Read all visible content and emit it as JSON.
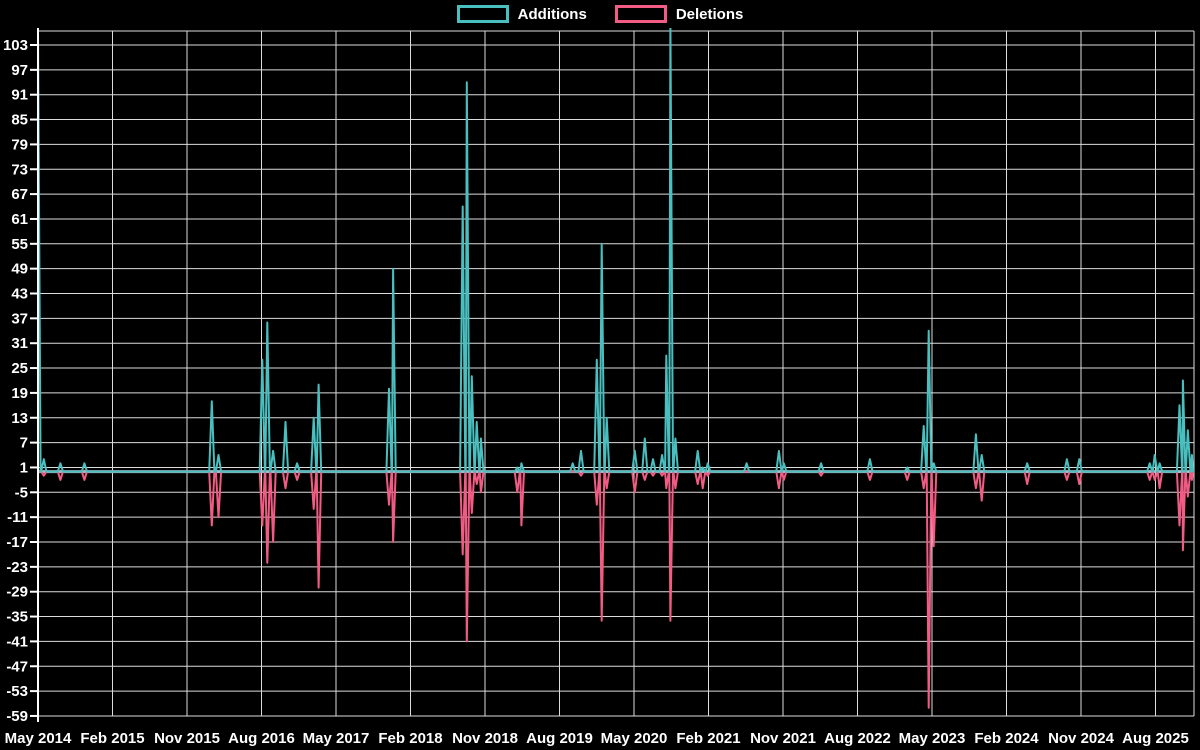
{
  "legend": {
    "additions_label": "Additions",
    "deletions_label": "Deletions"
  },
  "colors": {
    "background": "#000000",
    "additions": "#49bfbf",
    "deletions": "#f25c84",
    "grid": "#dcdcdc",
    "axis": "#ffffff",
    "zero_line": "#a4bcc6",
    "text": "#ffffff"
  },
  "chart_data": {
    "type": "line",
    "title": "",
    "legend_position": "top",
    "grid": true,
    "series_names": [
      "Additions",
      "Deletions"
    ],
    "x_start": "May 2014",
    "x_end": "Dec 2025",
    "months_per_x_tick": 9,
    "x_tick_labels": [
      "May 2014",
      "Feb 2015",
      "Nov 2015",
      "Aug 2016",
      "May 2017",
      "Feb 2018",
      "Nov 2018",
      "Aug 2019",
      "May 2020",
      "Feb 2021",
      "Nov 2021",
      "Aug 2022",
      "May 2023",
      "Feb 2024",
      "Nov 2024",
      "Aug 2025"
    ],
    "y_min": -59,
    "y_max": 103,
    "y_tick_step": 6,
    "y_ticks": [
      103,
      97,
      91,
      85,
      79,
      73,
      67,
      61,
      55,
      49,
      43,
      37,
      31,
      25,
      19,
      13,
      7,
      1,
      -5,
      -11,
      -17,
      -23,
      -29,
      -35,
      -41,
      -47,
      -53,
      -59
    ],
    "baseline": 0,
    "clipped_note": "Additions spikes at May 2014 and Oct 2020 exceed the top of the plot (>103) and are clipped.",
    "points": [
      {
        "m": 0,
        "month": "May 2014",
        "additions": 106,
        "deletions": 0
      },
      {
        "m": 0.7,
        "month": "Jun 2014",
        "additions": 3,
        "deletions": -1
      },
      {
        "m": 2.7,
        "month": "Aug 2014",
        "additions": 2,
        "deletions": -2
      },
      {
        "m": 5.6,
        "month": "Nov 2014",
        "additions": 2,
        "deletions": -2
      },
      {
        "m": 21.0,
        "month": "Feb 2016",
        "additions": 17,
        "deletions": -13
      },
      {
        "m": 21.8,
        "month": "Mar 2016",
        "additions": 4,
        "deletions": -11
      },
      {
        "m": 27.1,
        "month": "Aug 2016",
        "additions": 27,
        "deletions": -13
      },
      {
        "m": 27.7,
        "month": "Sep 2016",
        "additions": 36,
        "deletions": -22
      },
      {
        "m": 28.4,
        "month": "Oct 2016",
        "additions": 5,
        "deletions": -17
      },
      {
        "m": 29.9,
        "month": "Nov 2016",
        "additions": 12,
        "deletions": -4
      },
      {
        "m": 31.3,
        "month": "Dec 2016",
        "additions": 2,
        "deletions": -2
      },
      {
        "m": 33.3,
        "month": "Feb 2017",
        "additions": 13,
        "deletions": -9
      },
      {
        "m": 33.9,
        "month": "Mar 2017",
        "additions": 21,
        "deletions": -28
      },
      {
        "m": 42.4,
        "month": "Nov 2017",
        "additions": 20,
        "deletions": -8
      },
      {
        "m": 42.9,
        "month": "Dec 2017",
        "additions": 49,
        "deletions": -17
      },
      {
        "m": 51.3,
        "month": "Aug 2018",
        "additions": 64,
        "deletions": -20
      },
      {
        "m": 51.8,
        "month": "Sep 2018",
        "additions": 94,
        "deletions": -41
      },
      {
        "m": 52.4,
        "month": "Oct 2018",
        "additions": 23,
        "deletions": -10
      },
      {
        "m": 53.0,
        "month": "Nov 2018",
        "additions": 12,
        "deletions": -3
      },
      {
        "m": 53.5,
        "month": "Dec 2018",
        "additions": 8,
        "deletions": -5
      },
      {
        "m": 57.9,
        "month": "Mar 2019",
        "additions": 1,
        "deletions": -5
      },
      {
        "m": 58.4,
        "month": "Apr 2019",
        "additions": 2,
        "deletions": -13
      },
      {
        "m": 64.6,
        "month": "Oct 2019",
        "additions": 2,
        "deletions": 0
      },
      {
        "m": 65.6,
        "month": "Nov 2019",
        "additions": 5,
        "deletions": -1
      },
      {
        "m": 67.5,
        "month": "Jan 2020",
        "additions": 27,
        "deletions": -8
      },
      {
        "m": 68.1,
        "month": "Feb 2020",
        "additions": 55,
        "deletions": -36
      },
      {
        "m": 68.7,
        "month": "Mar 2020",
        "additions": 13,
        "deletions": -4
      },
      {
        "m": 72.1,
        "month": "Jun 2020",
        "additions": 5,
        "deletions": -5
      },
      {
        "m": 73.3,
        "month": "Jul 2020",
        "additions": 8,
        "deletions": -2
      },
      {
        "m": 74.3,
        "month": "Aug 2020",
        "additions": 3,
        "deletions": -1
      },
      {
        "m": 75.4,
        "month": "Sep 2020",
        "additions": 4,
        "deletions": -1
      },
      {
        "m": 75.9,
        "month": "Oct 2020",
        "additions": 28,
        "deletions": -4
      },
      {
        "m": 76.4,
        "month": "Oct 2020",
        "additions": 108,
        "deletions": -36
      },
      {
        "m": 77.0,
        "month": "Nov 2020",
        "additions": 8,
        "deletions": -4
      },
      {
        "m": 79.7,
        "month": "Jan 2021",
        "additions": 5,
        "deletions": -3
      },
      {
        "m": 80.3,
        "month": "Feb 2021",
        "additions": 1,
        "deletions": -4
      },
      {
        "m": 80.9,
        "month": "Mar 2021",
        "additions": 2,
        "deletions": -1
      },
      {
        "m": 85.6,
        "month": "Jul 2021",
        "additions": 2,
        "deletions": 0
      },
      {
        "m": 89.5,
        "month": "Nov 2021",
        "additions": 5,
        "deletions": -4
      },
      {
        "m": 90.1,
        "month": "Dec 2021",
        "additions": 2,
        "deletions": -2
      },
      {
        "m": 94.6,
        "month": "Apr 2022",
        "additions": 2,
        "deletions": -1
      },
      {
        "m": 100.5,
        "month": "Oct 2022",
        "additions": 3,
        "deletions": -2
      },
      {
        "m": 105.0,
        "month": "Feb 2023",
        "additions": 1,
        "deletions": -2
      },
      {
        "m": 107.0,
        "month": "Apr 2023",
        "additions": 11,
        "deletions": -4
      },
      {
        "m": 107.6,
        "month": "May 2023",
        "additions": 34,
        "deletions": -57
      },
      {
        "m": 108.2,
        "month": "Jun 2023",
        "additions": 2,
        "deletions": -18
      },
      {
        "m": 113.3,
        "month": "Nov 2023",
        "additions": 9,
        "deletions": -4
      },
      {
        "m": 114.0,
        "month": "Dec 2023",
        "additions": 4,
        "deletions": -7
      },
      {
        "m": 119.5,
        "month": "May 2024",
        "additions": 2,
        "deletions": -3
      },
      {
        "m": 124.3,
        "month": "Oct 2024",
        "additions": 3,
        "deletions": -2
      },
      {
        "m": 125.8,
        "month": "Nov 2024",
        "additions": 3,
        "deletions": -3
      },
      {
        "m": 134.3,
        "month": "Jul 2025",
        "additions": 2,
        "deletions": -2
      },
      {
        "m": 134.9,
        "month": "Aug 2025",
        "additions": 4,
        "deletions": -2
      },
      {
        "m": 135.5,
        "month": "Sep 2025",
        "additions": 2,
        "deletions": -4
      },
      {
        "m": 137.9,
        "month": "Oct 2025",
        "additions": 16,
        "deletions": -13
      },
      {
        "m": 138.3,
        "month": "Nov 2025",
        "additions": 22,
        "deletions": -19
      },
      {
        "m": 138.9,
        "month": "Nov 2025",
        "additions": 10,
        "deletions": -6
      },
      {
        "m": 139.4,
        "month": "Dec 2025",
        "additions": 4,
        "deletions": -2
      }
    ]
  }
}
